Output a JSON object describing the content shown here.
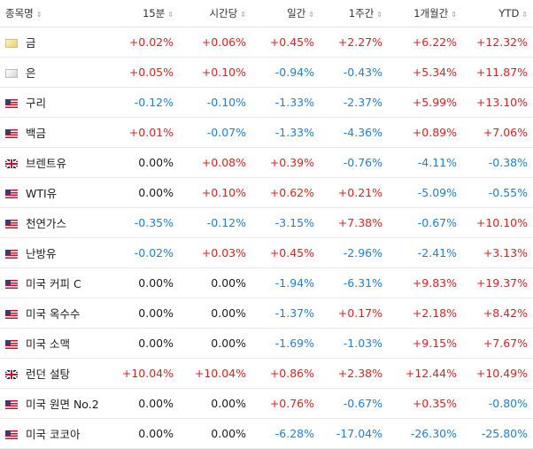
{
  "headers": [
    {
      "label": "종목명",
      "sort": "⇕"
    },
    {
      "label": "15분",
      "sort": "⇕"
    },
    {
      "label": "시간당",
      "sort": "⇕"
    },
    {
      "label": "일간",
      "sort": "⇕"
    },
    {
      "label": "1주간",
      "sort": "⇕"
    },
    {
      "label": "1개월간",
      "sort": "⇕"
    },
    {
      "label": "YTD",
      "sort": "⇕"
    }
  ],
  "colors": {
    "positive": "#e02020",
    "negative": "#1e7fd6",
    "neutral": "#1c1c1c"
  },
  "rows": [
    {
      "name": "금",
      "icon": "gold-icon",
      "flag": "gold",
      "values": [
        "+0.02%",
        "+0.06%",
        "+0.45%",
        "+2.27%",
        "+6.22%",
        "+12.32%"
      ]
    },
    {
      "name": "은",
      "icon": "silver-icon",
      "flag": "silver",
      "values": [
        "+0.05%",
        "+0.10%",
        "-0.94%",
        "-0.43%",
        "+5.34%",
        "+11.87%"
      ]
    },
    {
      "name": "구리",
      "icon": "us-flag-icon",
      "flag": "us",
      "values": [
        "-0.12%",
        "-0.10%",
        "-1.33%",
        "-2.37%",
        "+5.99%",
        "+13.10%"
      ]
    },
    {
      "name": "백금",
      "icon": "us-flag-icon",
      "flag": "us",
      "values": [
        "+0.01%",
        "-0.07%",
        "-1.33%",
        "-4.36%",
        "+0.89%",
        "+7.06%"
      ]
    },
    {
      "name": "브렌트유",
      "icon": "uk-flag-icon",
      "flag": "uk",
      "values": [
        "0.00%",
        "+0.08%",
        "+0.39%",
        "-0.76%",
        "-4.11%",
        "-0.38%"
      ]
    },
    {
      "name": "WTI유",
      "icon": "us-flag-icon",
      "flag": "us",
      "values": [
        "0.00%",
        "+0.10%",
        "+0.62%",
        "+0.21%",
        "-5.09%",
        "-0.55%"
      ]
    },
    {
      "name": "천연가스",
      "icon": "us-flag-icon",
      "flag": "us",
      "values": [
        "-0.35%",
        "-0.12%",
        "-3.15%",
        "+7.38%",
        "-0.67%",
        "+10.10%"
      ]
    },
    {
      "name": "난방유",
      "icon": "us-flag-icon",
      "flag": "us",
      "values": [
        "-0.02%",
        "+0.03%",
        "+0.45%",
        "-2.96%",
        "-2.41%",
        "+3.13%"
      ]
    },
    {
      "name": "미국 커피 C",
      "icon": "us-flag-icon",
      "flag": "us",
      "values": [
        "0.00%",
        "0.00%",
        "-1.94%",
        "-6.31%",
        "+9.83%",
        "+19.37%"
      ]
    },
    {
      "name": "미국 옥수수",
      "icon": "us-flag-icon",
      "flag": "us",
      "values": [
        "0.00%",
        "0.00%",
        "-1.37%",
        "+0.17%",
        "+2.18%",
        "+8.42%"
      ]
    },
    {
      "name": "미국 소맥",
      "icon": "us-flag-icon",
      "flag": "us",
      "values": [
        "0.00%",
        "0.00%",
        "-1.69%",
        "-1.03%",
        "+9.15%",
        "+7.67%"
      ]
    },
    {
      "name": "런던 설탕",
      "icon": "uk-flag-icon",
      "flag": "uk",
      "values": [
        "+10.04%",
        "+10.04%",
        "+0.86%",
        "+2.38%",
        "+12.44%",
        "+10.49%"
      ]
    },
    {
      "name": "미국 원면 No.2",
      "icon": "us-flag-icon",
      "flag": "us",
      "values": [
        "0.00%",
        "0.00%",
        "+0.76%",
        "-0.67%",
        "+0.35%",
        "-0.80%"
      ]
    },
    {
      "name": "미국 코코아",
      "icon": "us-flag-icon",
      "flag": "us",
      "values": [
        "0.00%",
        "0.00%",
        "-6.28%",
        "-17.04%",
        "-26.30%",
        "-25.80%"
      ]
    }
  ]
}
